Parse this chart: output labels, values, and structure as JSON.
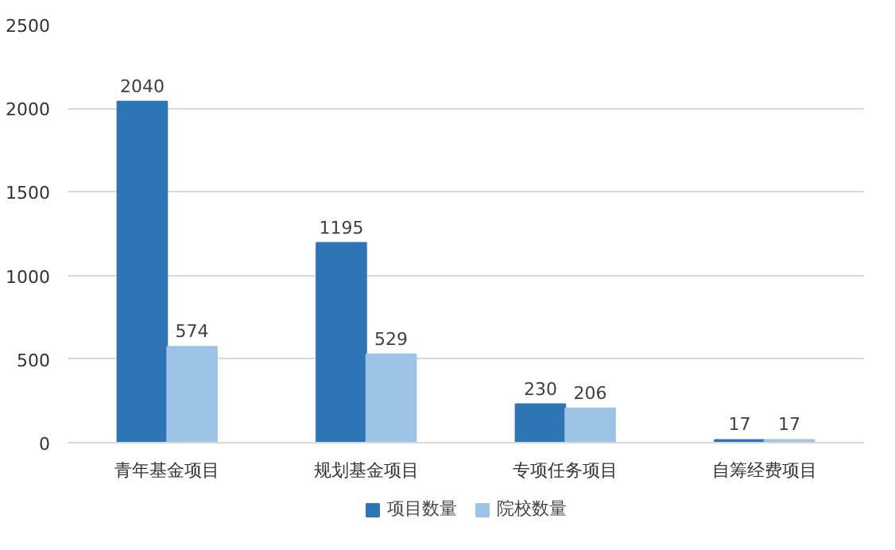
{
  "chart_data": {
    "type": "bar",
    "categories": [
      "青年基金项目",
      "规划基金项目",
      "专项任务项目",
      "自筹经费项目"
    ],
    "series": [
      {
        "name": "项目数量",
        "color": "#2e75b6",
        "values": [
          2040,
          1195,
          230,
          17
        ]
      },
      {
        "name": "院校数量",
        "color": "#9dc3e6",
        "values": [
          574,
          529,
          206,
          17
        ]
      }
    ],
    "ylim": [
      0,
      2500
    ],
    "yticks": [
      0,
      500,
      1000,
      1500,
      2000,
      2500
    ],
    "grid": "y",
    "legend": "bottom",
    "data_labels": true
  }
}
